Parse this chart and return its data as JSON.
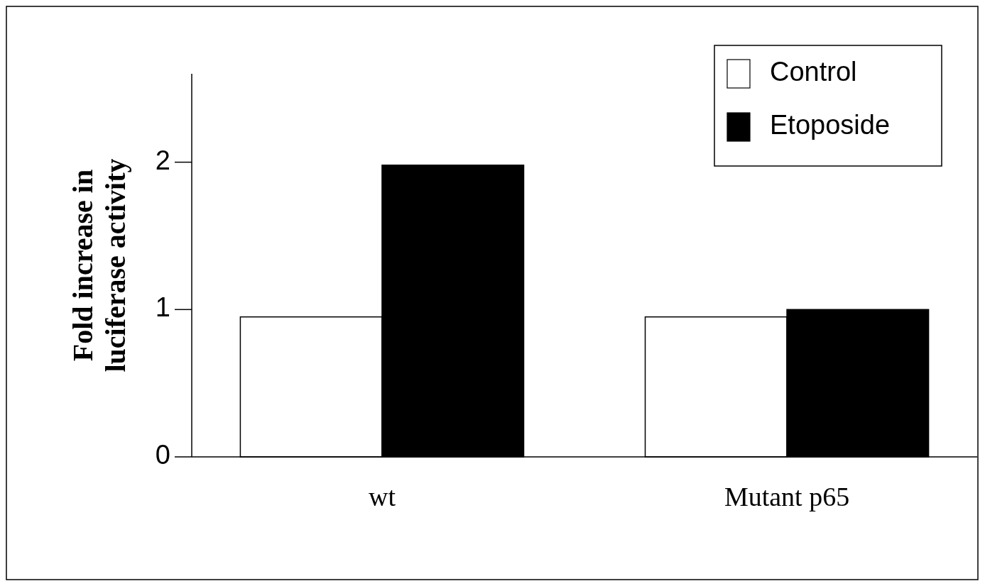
{
  "chart_data": {
    "type": "bar",
    "ylabel": "Fold increase in luciferase activity",
    "categories": [
      "wt",
      "Mutant p65"
    ],
    "series": [
      {
        "name": "Control",
        "color": "#ffffff",
        "values": [
          0.95,
          0.95
        ]
      },
      {
        "name": "Etoposide",
        "color": "#000000",
        "values": [
          1.98,
          1.0
        ]
      }
    ],
    "ylim": [
      0,
      2.6
    ],
    "yticks": [
      0,
      1,
      2
    ],
    "grid": false,
    "legend": "top right"
  }
}
